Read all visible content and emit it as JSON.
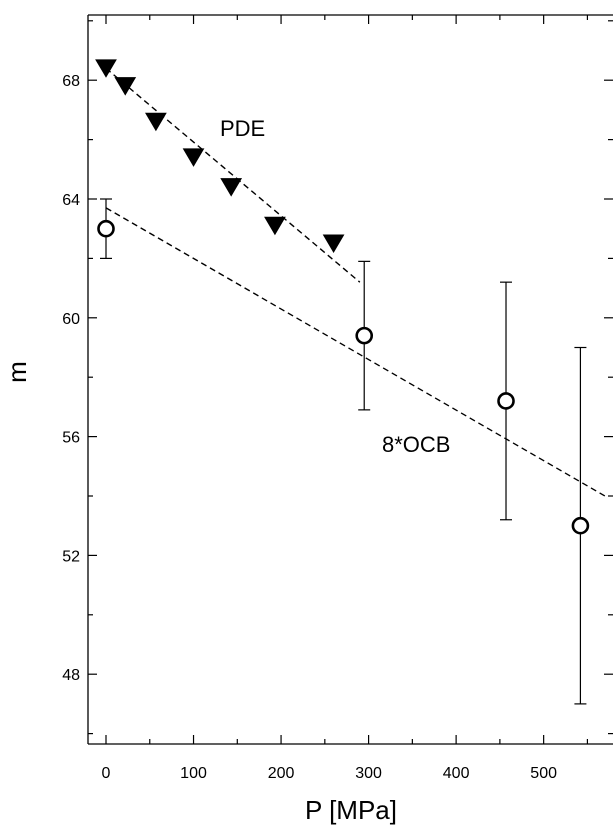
{
  "chart_data": {
    "type": "scatter",
    "xlabel": "P  [MPa]",
    "ylabel": "m",
    "xlim": [
      -20,
      570
    ],
    "ylim": [
      46,
      70
    ],
    "x_ticks": [
      0,
      100,
      200,
      300,
      400,
      500
    ],
    "y_ticks": [
      48,
      52,
      56,
      60,
      64,
      68
    ],
    "grid": false,
    "legend": "none",
    "series": [
      {
        "name": "PDE",
        "marker": "filled-down-triangle",
        "color": "#000000",
        "points": [
          {
            "x": 0,
            "y": 68.4
          },
          {
            "x": 22,
            "y": 67.8
          },
          {
            "x": 57,
            "y": 66.6
          },
          {
            "x": 100,
            "y": 65.4
          },
          {
            "x": 143,
            "y": 64.4
          },
          {
            "x": 193,
            "y": 63.1
          },
          {
            "x": 260,
            "y": 62.5
          }
        ],
        "fit_line": {
          "x": [
            0,
            290
          ],
          "y": [
            68.4,
            61.2
          ]
        }
      },
      {
        "name": "8*OCB",
        "marker": "open-circle",
        "color": "#000000",
        "points": [
          {
            "x": 0,
            "y": 63.0,
            "err": 1.0
          },
          {
            "x": 295,
            "y": 59.4,
            "err": 2.5
          },
          {
            "x": 457,
            "y": 57.2,
            "err": 4.0
          },
          {
            "x": 542,
            "y": 53.0,
            "err": 6.0
          }
        ],
        "fit_line": {
          "x": [
            0,
            570
          ],
          "y": [
            63.7,
            54.0
          ]
        }
      }
    ]
  }
}
